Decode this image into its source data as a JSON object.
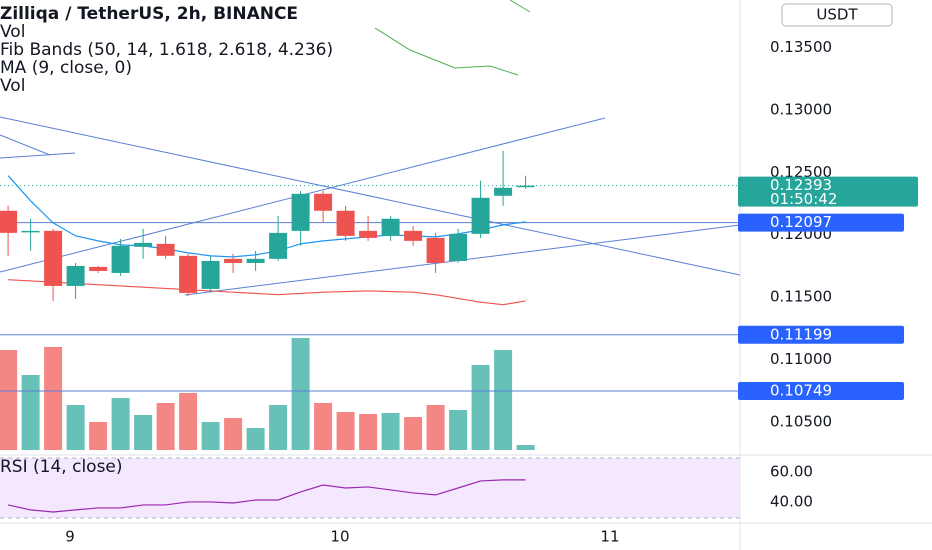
{
  "chart_data": {
    "type": "candlestick",
    "title": "Zilliqa / TetherUS, 2h, BINANCE",
    "legend_lines": [
      "Vol",
      "Fib Bands (50, 14, 1.618, 2.618, 4.236)",
      "MA (9, close, 0)",
      "Vol"
    ],
    "currency": "USDT",
    "open": [
      0.12192,
      0.12023,
      0.12031,
      0.1159,
      0.11742,
      0.11694,
      0.11903,
      0.11927,
      0.11831,
      0.11566,
      0.11807,
      0.11774,
      0.11807,
      0.12031,
      0.12328,
      0.12192,
      0.12031,
      0.11991,
      0.12031,
      0.11975,
      0.1179,
      0.12007,
      0.12312,
      0.12384
    ],
    "high": [
      0.12232,
      0.12128,
      0.12047,
      0.11774,
      0.1175,
      0.11967,
      0.12047,
      0.11991,
      0.11847,
      0.11831,
      0.11847,
      0.11871,
      0.12152,
      0.12352,
      0.12352,
      0.12232,
      0.12152,
      0.12152,
      0.12071,
      0.12015,
      0.12047,
      0.12433,
      0.12673,
      0.12473
    ],
    "low": [
      0.11831,
      0.11871,
      0.11469,
      0.11486,
      0.11694,
      0.1167,
      0.11807,
      0.11807,
      0.1151,
      0.1155,
      0.11694,
      0.1171,
      0.1179,
      0.11911,
      0.12095,
      0.11951,
      0.11951,
      0.11951,
      0.11911,
      0.11694,
      0.11774,
      0.11975,
      0.12232,
      0.12368
    ],
    "close": [
      0.12015,
      0.12031,
      0.1159,
      0.1175,
      0.1171,
      0.11911,
      0.11935,
      0.11831,
      0.11534,
      0.1179,
      0.11774,
      0.11807,
      0.12015,
      0.12328,
      0.12192,
      0.11991,
      0.11975,
      0.12128,
      0.11951,
      0.11774,
      0.12007,
      0.12296,
      0.12376,
      0.12393
    ],
    "volume": [
      100,
      75,
      103,
      45,
      28,
      52,
      35,
      47,
      57,
      28,
      32,
      22,
      45,
      112,
      47,
      38,
      36,
      37,
      33,
      45,
      40,
      85,
      100,
      5
    ],
    "indicators": [
      {
        "color": "#2196f3",
        "values": [
          0.12473,
          0.12272,
          0.12095,
          0.11991,
          0.11951,
          0.11919,
          0.11911,
          0.11887,
          0.11855,
          0.11831,
          0.11823,
          0.11839,
          0.11871,
          0.11927,
          0.11951,
          0.11967,
          0.11983,
          0.11999,
          0.11991,
          0.11983,
          0.12007,
          0.12039,
          0.12079,
          0.12103
        ]
      },
      {
        "color": "#ef5350",
        "values": [
          0.1164,
          0.1163,
          0.1162,
          0.1161,
          0.116,
          0.1159,
          0.1158,
          0.1157,
          0.1156,
          0.1155,
          0.1154,
          0.1153,
          0.1152,
          0.1153,
          0.1154,
          0.11545,
          0.1155,
          0.11545,
          0.1154,
          0.1152,
          0.1149,
          0.1146,
          0.1144,
          0.1147
        ]
      }
    ],
    "up_color": "#26a69a",
    "down_color": "#ef5350",
    "ylim": [
      0.1026,
      0.1388
    ],
    "yticks": [
      {
        "value": 0.135,
        "label": "0.13500"
      },
      {
        "value": 0.13,
        "label": "0.13000"
      },
      {
        "value": 0.125,
        "label": "0.12500"
      },
      {
        "value": 0.12,
        "label": "0.12000"
      },
      {
        "value": 0.115,
        "label": "0.11500"
      },
      {
        "value": 0.11,
        "label": "0.11000"
      },
      {
        "value": 0.105,
        "label": "0.10500"
      }
    ],
    "xlim": [
      -0.36,
      32.53
    ],
    "xticks": [
      {
        "value": 2.75,
        "label": "9"
      },
      {
        "value": 14.75,
        "label": "10"
      },
      {
        "value": 26.75,
        "label": "11"
      }
    ],
    "last_price": {
      "value": 0.12393,
      "label": "0.12393",
      "countdown": "01:50:42"
    },
    "price_lines": [
      {
        "value": 0.12097,
        "label": "0.12097"
      },
      {
        "value": 0.11199,
        "label": "0.11199"
      },
      {
        "value": 0.10749,
        "label": "0.10749"
      }
    ],
    "rsi": {
      "title": "RSI (14, close)",
      "values": [
        38.0,
        34.7,
        33.3,
        34.7,
        36.0,
        36.0,
        38.0,
        38.0,
        40.0,
        40.0,
        39.3,
        41.3,
        41.3,
        46.7,
        51.3,
        49.3,
        50.0,
        48.0,
        46.0,
        44.7,
        49.3,
        54.0,
        54.7,
        54.7
      ],
      "color": "#9c27b0",
      "ylim": [
        29.3,
        69.3
      ],
      "yticks": [
        {
          "value": 60,
          "label": "60.00"
        },
        {
          "value": 40,
          "label": "40.00"
        }
      ]
    }
  }
}
